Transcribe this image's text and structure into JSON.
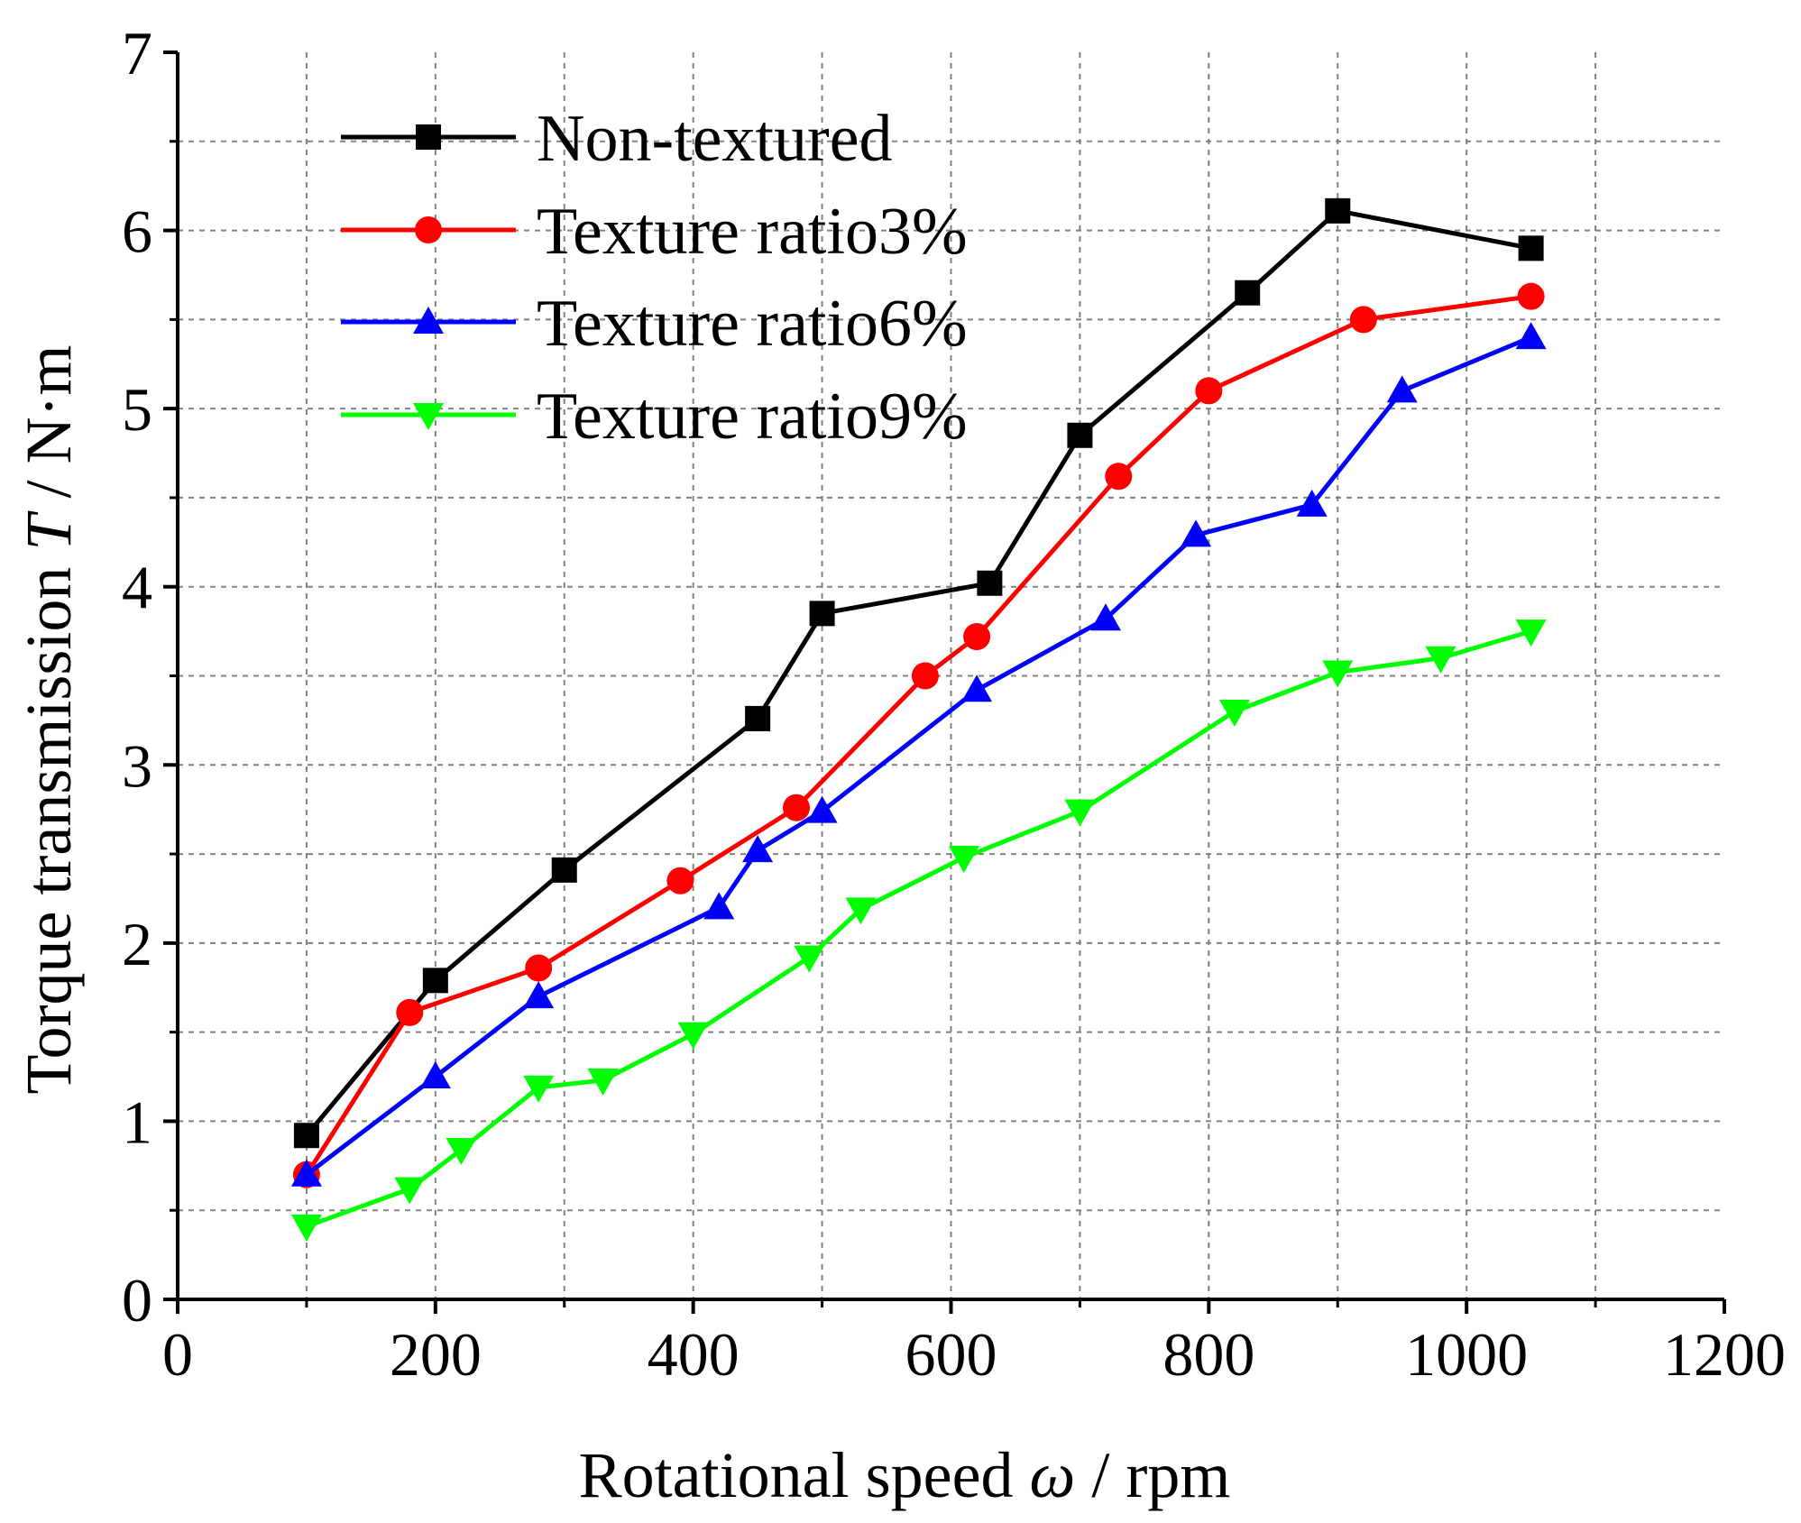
{
  "chart_data": {
    "type": "line",
    "title": "",
    "xlabel": {
      "prefix": "Rotational speed ",
      "symbol": "ω",
      "suffix": " / rpm"
    },
    "ylabel": {
      "prefix": "Torque transmission ",
      "symbol": "T",
      "suffix": " / N·m"
    },
    "xlim": [
      0,
      1200
    ],
    "ylim": [
      0,
      7
    ],
    "x_ticks": [
      0,
      200,
      400,
      600,
      800,
      1000,
      1200
    ],
    "x_tick_labels": [
      "0",
      "200",
      "400",
      "600",
      "800",
      "1000",
      "1200"
    ],
    "x_minor_ticks": [
      100,
      300,
      500,
      700,
      900,
      1100
    ],
    "y_ticks": [
      0,
      1,
      2,
      3,
      4,
      5,
      6,
      7
    ],
    "y_tick_labels": [
      "0",
      "1",
      "2",
      "3",
      "4",
      "5",
      "6",
      "7"
    ],
    "y_minor_ticks": [
      0.5,
      1.5,
      2.5,
      3.5,
      4.5,
      5.5,
      6.5
    ],
    "grid": true,
    "legend_position": "top-left",
    "series": [
      {
        "name": "Non-textured",
        "color": "#000000",
        "marker": "square",
        "x": [
          100,
          200,
          300,
          450,
          500,
          630,
          700,
          830,
          900,
          1050
        ],
        "y": [
          0.92,
          1.79,
          2.41,
          3.26,
          3.85,
          4.02,
          4.85,
          5.65,
          6.11,
          5.9
        ]
      },
      {
        "name": "Texture ratio3%",
        "color": "#ff0000",
        "marker": "circle",
        "x": [
          100,
          180,
          280,
          390,
          480,
          580,
          620,
          730,
          800,
          920,
          1050
        ],
        "y": [
          0.7,
          1.61,
          1.86,
          2.35,
          2.76,
          3.5,
          3.72,
          4.62,
          5.1,
          5.5,
          5.63
        ]
      },
      {
        "name": "Texture ratio6%",
        "color": "#0000ff",
        "marker": "triangle-up",
        "x": [
          100,
          200,
          280,
          420,
          450,
          500,
          620,
          720,
          790,
          880,
          950,
          1050
        ],
        "y": [
          0.7,
          1.25,
          1.7,
          2.2,
          2.52,
          2.74,
          3.42,
          3.82,
          4.29,
          4.46,
          5.1,
          5.4
        ]
      },
      {
        "name": "Texture ratio9%",
        "color": "#00ff00",
        "marker": "triangle-down",
        "x": [
          100,
          180,
          220,
          280,
          330,
          400,
          490,
          530,
          610,
          700,
          820,
          900,
          980,
          1050
        ],
        "y": [
          0.41,
          0.62,
          0.84,
          1.19,
          1.23,
          1.49,
          1.92,
          2.19,
          2.48,
          2.74,
          3.3,
          3.52,
          3.6,
          3.75
        ]
      }
    ]
  }
}
